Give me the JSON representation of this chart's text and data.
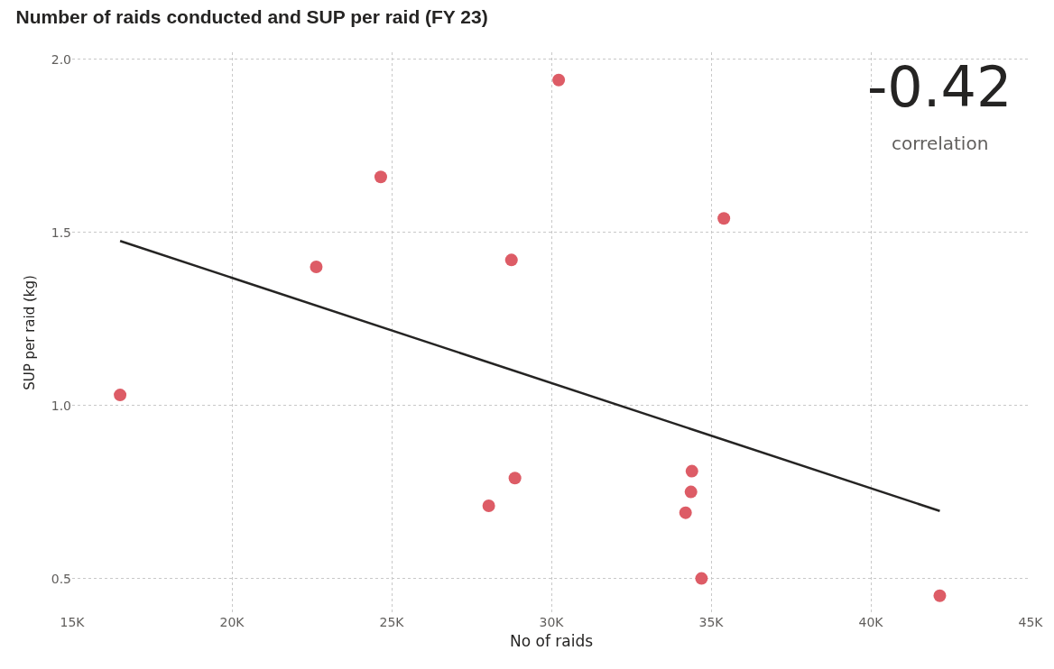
{
  "chart_data": {
    "type": "scatter",
    "title": "Number of raids conducted and SUP per raid (FY 23)",
    "xlabel": "No of raids",
    "ylabel": "SUP per raid (kg)",
    "annotations": [
      "-0.42",
      "correlation"
    ],
    "series": [
      {
        "color": "#dd5c66",
        "x": [
          16500,
          22640,
          24660,
          28750,
          28040,
          28860,
          30230,
          34400,
          34370,
          34200,
          34700,
          35400,
          42160
        ],
        "values": [
          1.03,
          1.4,
          1.66,
          1.42,
          0.71,
          0.79,
          1.94,
          0.81,
          0.75,
          0.69,
          0.5,
          1.54,
          0.45
        ]
      },
      {
        "type": "line",
        "marker": "none",
        "color": "#252423",
        "x": [
          16500,
          42160
        ],
        "values": [
          1.475,
          0.695
        ]
      }
    ],
    "xlim": [
      15000,
      45000
    ],
    "xticks": [
      {
        "value": 15000,
        "label": "15K"
      },
      {
        "value": 20000,
        "label": "20K"
      },
      {
        "value": 25000,
        "label": "25K"
      },
      {
        "value": 30000,
        "label": "30K"
      },
      {
        "value": 35000,
        "label": "35K"
      },
      {
        "value": 40000,
        "label": "40K"
      },
      {
        "value": 45000,
        "label": "45K"
      }
    ],
    "ylim": [
      0.4,
      2.02
    ],
    "yticks": [
      {
        "value": 0.5,
        "label": "0.5"
      },
      {
        "value": 1.0,
        "label": "1.0"
      },
      {
        "value": 1.5,
        "label": "1.5"
      },
      {
        "value": 2.0,
        "label": "2.0"
      }
    ],
    "grid": true,
    "marker": "circle",
    "legend": false
  }
}
